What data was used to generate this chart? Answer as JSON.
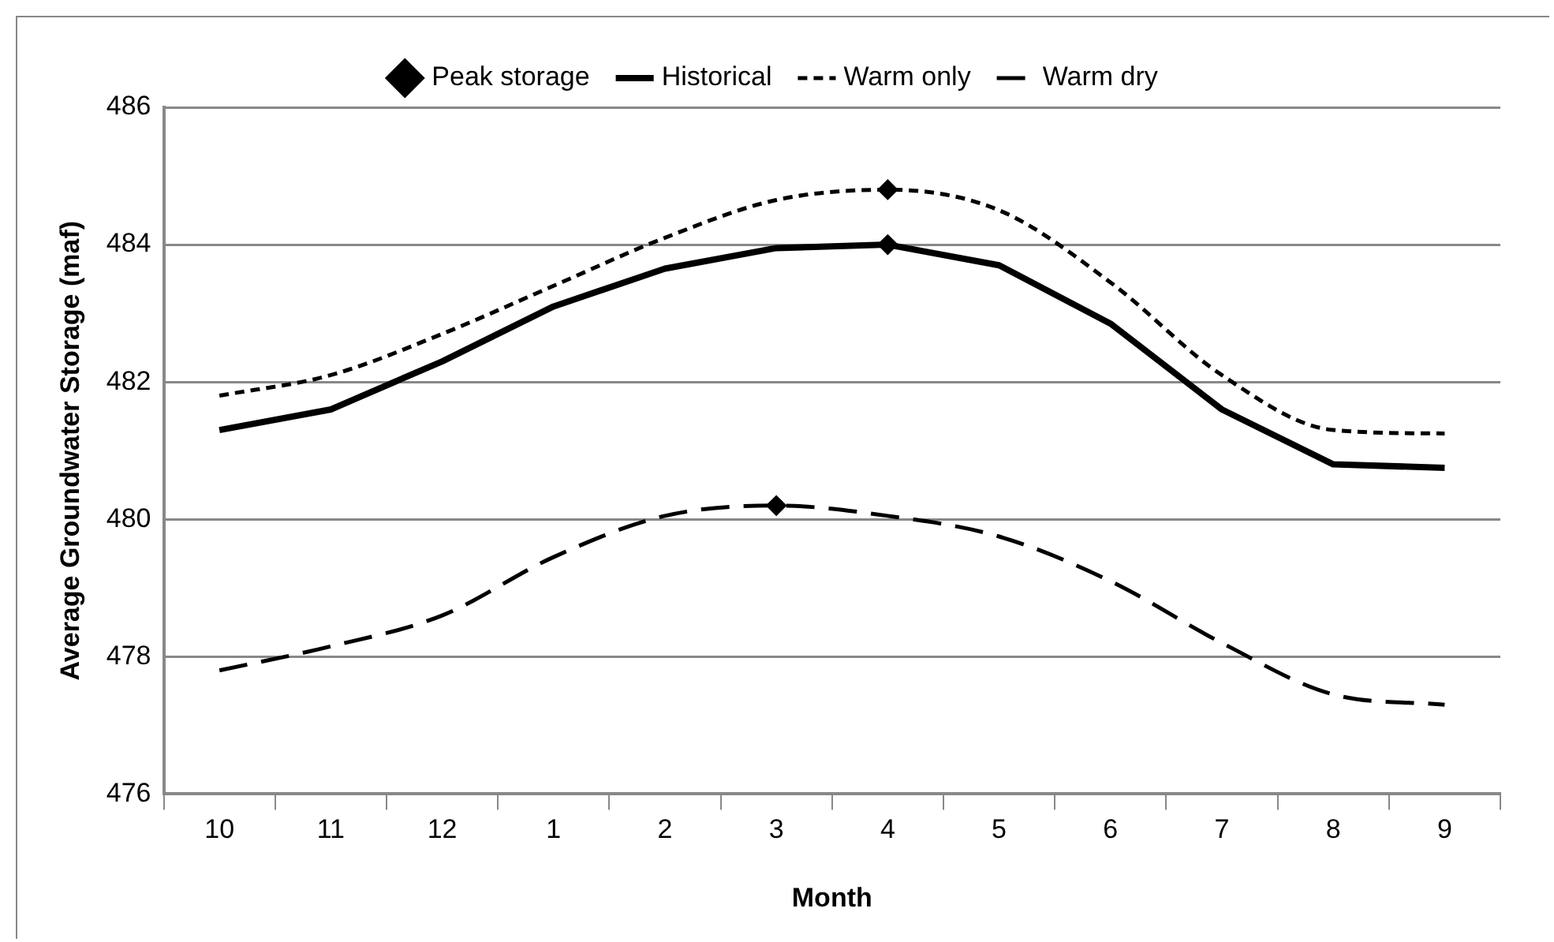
{
  "chart_data": {
    "type": "line",
    "xlabel": "Month",
    "ylabel": "Average Groundwater Storage (maf)",
    "categories": [
      "10",
      "11",
      "12",
      "1",
      "2",
      "3",
      "4",
      "5",
      "6",
      "7",
      "8",
      "9"
    ],
    "series": [
      {
        "name": "Peak storage",
        "type": "scatter",
        "color": "#000000",
        "marker": "diamond",
        "x": [
          "3",
          "4",
          "4"
        ],
        "values": [
          480.2,
          484.0,
          484.8
        ]
      },
      {
        "name": "Historical",
        "color": "#000000",
        "line_style": "solid",
        "values": [
          481.3,
          481.6,
          482.3,
          483.1,
          483.65,
          483.95,
          484.0,
          483.7,
          482.85,
          481.6,
          480.8,
          480.75
        ]
      },
      {
        "name": "Warm only",
        "color": "#000000",
        "line_style": "dotted",
        "values": [
          481.8,
          482.1,
          482.7,
          483.4,
          484.1,
          484.65,
          484.8,
          484.5,
          483.45,
          482.1,
          481.3,
          481.25
        ]
      },
      {
        "name": "Warm dry",
        "color": "#000000",
        "line_style": "dashed",
        "values": [
          477.8,
          478.15,
          478.6,
          479.45,
          480.05,
          480.2,
          480.05,
          479.75,
          479.1,
          478.2,
          477.45,
          477.3
        ]
      }
    ],
    "ylim": [
      476,
      486
    ],
    "yticks": [
      476,
      478,
      480,
      482,
      484,
      486
    ],
    "grid": "y",
    "legend": "top",
    "marker": "none"
  }
}
